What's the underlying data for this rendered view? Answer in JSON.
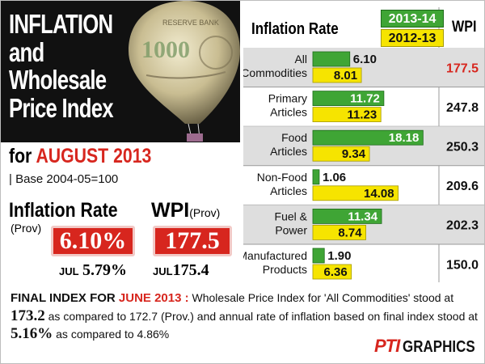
{
  "header": {
    "title_lines": [
      "INFLATION",
      "and",
      "Wholesale",
      "Price Index"
    ],
    "for_prefix": "for ",
    "for_month": "AUGUST 2013",
    "base": "| Base 2004-05=100"
  },
  "summary": {
    "inflation_label": "Inflation Rate",
    "inflation_prov": "(Prov)",
    "inflation_value": "6.10%",
    "wpi_label": "WPI",
    "wpi_prov": "(Prov)",
    "wpi_value": "177.5",
    "jul_label": "JUL",
    "jul_inflation": "5.79%",
    "jul_wpi": "175.4"
  },
  "colors": {
    "accent_red": "#d7261e",
    "series_2013_14": "#3fa535",
    "series_2012_13": "#f6e400"
  },
  "chart_data": {
    "type": "bar",
    "title": "Inflation Rate",
    "categories": [
      "All Commodities",
      "Primary Articles",
      "Food Articles",
      "Non-Food Articles",
      "Fuel & Power",
      "Manufactured Products"
    ],
    "category_lines": [
      [
        "All",
        "Commodities"
      ],
      [
        "Primary",
        "Articles"
      ],
      [
        "Food",
        "Articles"
      ],
      [
        "Non-Food",
        "Articles"
      ],
      [
        "Fuel &",
        "Power"
      ],
      [
        "Manufactured",
        "Products"
      ]
    ],
    "series": [
      {
        "name": "2013-14",
        "color": "#3fa535",
        "values": [
          6.1,
          11.72,
          18.18,
          1.06,
          11.34,
          1.9
        ]
      },
      {
        "name": "2012-13",
        "color": "#f6e400",
        "values": [
          8.01,
          11.23,
          9.34,
          14.08,
          8.74,
          6.36
        ]
      }
    ],
    "wpi_header": "WPI",
    "wpi": [
      "177.5",
      "247.8",
      "250.3",
      "209.6",
      "202.3",
      "150.0"
    ],
    "orientation": "horizontal",
    "legend": "top"
  },
  "footer": {
    "heading": "FINAL INDEX FOR ",
    "heading_month": "JUNE 2013 :",
    "text1": " Wholesale Price Index for 'All Commodities' stood at",
    "value1": "173.2",
    "text2": " as compared to 172.7 (Prov.) and  annual rate of inflation based on final index stood at ",
    "value2": "5.16%",
    "text3": " as compared to 4.86%",
    "credit_a": "PTI",
    "credit_b": "GRAPHICS"
  }
}
